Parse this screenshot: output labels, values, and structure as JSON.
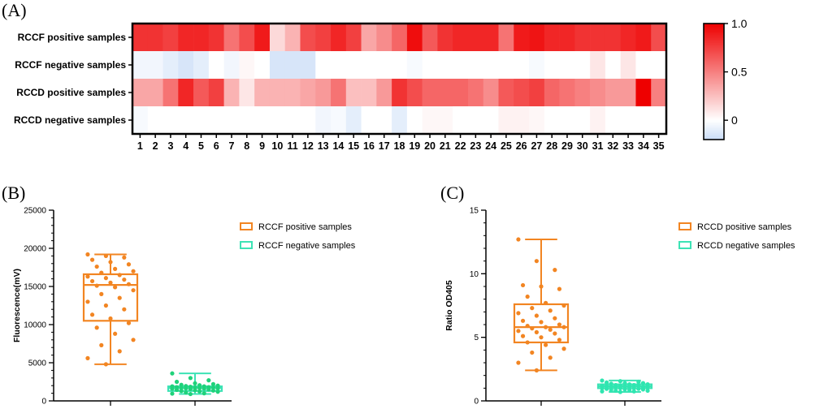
{
  "panels": {
    "a": "(A)",
    "b": "(B)",
    "c": "(C)"
  },
  "colors": {
    "positive": "#f28522",
    "negative_rccf": "#1fd27a",
    "negative_rccd": "#2ee6b0",
    "negative_box": "#3de3b5",
    "heat_high": "#ee0000",
    "heat_low": "#c9dcf7"
  },
  "chart_data": [
    {
      "type": "heatmap",
      "rows": [
        "RCCF positive samples",
        "RCCF negative samples",
        "RCCD positive samples",
        "RCCD negative samples"
      ],
      "columns": [
        "1",
        "2",
        "3",
        "4",
        "5",
        "6",
        "7",
        "8",
        "9",
        "10",
        "11",
        "12",
        "13",
        "14",
        "15",
        "16",
        "17",
        "18",
        "19",
        "20",
        "21",
        "22",
        "23",
        "24",
        "25",
        "26",
        "27",
        "28",
        "29",
        "30",
        "31",
        "32",
        "33",
        "34",
        "35"
      ],
      "values": [
        [
          0.8,
          0.8,
          0.75,
          0.85,
          0.85,
          0.8,
          0.55,
          0.7,
          0.9,
          0.15,
          0.3,
          0.7,
          0.75,
          0.85,
          0.75,
          0.35,
          0.45,
          0.6,
          0.95,
          0.65,
          0.8,
          0.85,
          0.85,
          0.85,
          0.55,
          0.9,
          0.92,
          0.85,
          0.85,
          0.8,
          0.8,
          0.8,
          0.85,
          0.9,
          0.7
        ],
        [
          -0.05,
          -0.05,
          -0.1,
          -0.15,
          -0.1,
          0.0,
          -0.05,
          0.03,
          0.0,
          -0.15,
          -0.15,
          -0.15,
          0.0,
          0.0,
          0.0,
          0.0,
          0.0,
          0.0,
          -0.03,
          0.0,
          0.0,
          0.0,
          0.0,
          0.0,
          0.0,
          0.0,
          -0.03,
          0.0,
          0.0,
          0.0,
          0.1,
          0.0,
          0.1,
          0.0,
          0.0
        ],
        [
          0.35,
          0.35,
          0.55,
          0.85,
          0.65,
          0.75,
          0.3,
          0.1,
          0.3,
          0.3,
          0.3,
          0.35,
          0.4,
          0.55,
          0.25,
          0.25,
          0.4,
          0.8,
          0.7,
          0.6,
          0.6,
          0.6,
          0.55,
          0.45,
          0.65,
          0.7,
          0.75,
          0.6,
          0.55,
          0.5,
          0.45,
          0.4,
          0.4,
          1.0,
          0.5
        ],
        [
          -0.03,
          0.0,
          0.0,
          0.0,
          0.0,
          0.0,
          0.0,
          0.0,
          0.0,
          0.0,
          0.0,
          0.0,
          -0.05,
          -0.03,
          -0.1,
          0.0,
          0.0,
          -0.1,
          0.0,
          0.03,
          0.03,
          0.0,
          0.0,
          0.0,
          0.05,
          0.05,
          0.03,
          0.0,
          0.0,
          0.0,
          0.05,
          0.0,
          0.0,
          0.0,
          0.0
        ]
      ],
      "colorbar": {
        "ticks": [
          "1.0",
          "0.5",
          "0"
        ],
        "range": [
          -0.2,
          1.0
        ]
      }
    },
    {
      "type": "box",
      "ylabel": "Fluorescence(mV)",
      "yticks": [
        "0",
        "5000",
        "10000",
        "15000",
        "20000",
        "25000"
      ],
      "ylim": [
        0,
        25000
      ],
      "series": [
        {
          "name": "RCCF positive samples",
          "min": 4800,
          "q1": 10500,
          "median": 15200,
          "q3": 16600,
          "max": 19200,
          "points": [
            19200,
            19000,
            18800,
            18500,
            18200,
            17900,
            17600,
            17300,
            17000,
            16800,
            16500,
            16300,
            16100,
            15900,
            15700,
            15500,
            15300,
            15100,
            14900,
            14500,
            14000,
            13500,
            13000,
            12500,
            12000,
            11300,
            10800,
            10200,
            9600,
            8800,
            8000,
            7300,
            6500,
            5600,
            4800
          ]
        },
        {
          "name": "RCCF negative samples",
          "min": 900,
          "q1": 1300,
          "median": 1700,
          "q3": 1900,
          "max": 3600,
          "points": [
            3600,
            3000,
            2700,
            2500,
            2300,
            2200,
            2100,
            2050,
            2000,
            1950,
            1900,
            1900,
            1850,
            1800,
            1800,
            1750,
            1750,
            1700,
            1700,
            1650,
            1650,
            1600,
            1600,
            1550,
            1500,
            1450,
            1400,
            1350,
            1300,
            1250,
            1200,
            1100,
            1000,
            950,
            900
          ]
        }
      ]
    },
    {
      "type": "box",
      "ylabel": "Ratio OD405",
      "yticks": [
        "0",
        "5",
        "10",
        "15"
      ],
      "ylim": [
        0,
        15
      ],
      "series": [
        {
          "name": "RCCD positive samples",
          "min": 2.4,
          "q1": 4.6,
          "median": 5.8,
          "q3": 7.6,
          "max": 12.7,
          "points": [
            12.7,
            11.0,
            10.3,
            9.1,
            9.0,
            8.8,
            8.2,
            7.7,
            7.5,
            7.3,
            7.1,
            6.9,
            6.7,
            6.5,
            6.3,
            6.2,
            6.0,
            5.9,
            5.8,
            5.8,
            5.7,
            5.6,
            5.5,
            5.4,
            5.3,
            5.1,
            5.0,
            4.8,
            4.6,
            4.4,
            4.1,
            3.8,
            3.4,
            3.0,
            2.4
          ]
        },
        {
          "name": "RCCD negative samples",
          "min": 0.7,
          "q1": 1.0,
          "median": 1.15,
          "q3": 1.3,
          "max": 1.6,
          "points": [
            1.6,
            1.55,
            1.5,
            1.45,
            1.4,
            1.4,
            1.35,
            1.3,
            1.3,
            1.25,
            1.25,
            1.2,
            1.2,
            1.2,
            1.15,
            1.15,
            1.1,
            1.1,
            1.1,
            1.05,
            1.05,
            1.0,
            1.0,
            1.0,
            0.95,
            0.95,
            0.9,
            0.9,
            0.85,
            0.85,
            0.8,
            0.8,
            0.75,
            0.75,
            0.7
          ]
        }
      ]
    }
  ]
}
